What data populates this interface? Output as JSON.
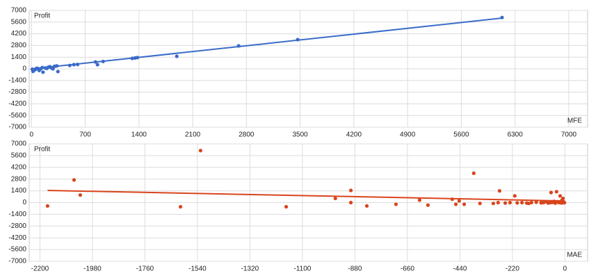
{
  "chart_data": [
    {
      "type": "scatter",
      "y_label": "Profit",
      "x_label": "MFE",
      "xlim": [
        -30,
        7245
      ],
      "xticks": [
        0,
        700,
        1400,
        2100,
        2800,
        3500,
        4200,
        4900,
        5600,
        6300,
        7000
      ],
      "ylim": [
        -7000,
        7000
      ],
      "yticks": [
        7000,
        5600,
        4200,
        2800,
        1400,
        0,
        -1400,
        -2800,
        -4200,
        -5600,
        -7000
      ],
      "grid": true,
      "series": [
        {
          "color": "#3a6bc9",
          "x": [
            6131,
            3468,
            2699,
            1893,
            1313,
            1349,
            1380,
            833,
            860,
            933,
            498,
            552,
            600,
            344,
            20,
            50,
            80,
            120,
            150,
            180,
            220,
            260,
            300,
            330,
            60,
            100,
            140,
            200,
            240,
            280,
            30,
            10
          ],
          "values": [
            6150,
            3500,
            2750,
            1500,
            1250,
            1300,
            1350,
            830,
            500,
            880,
            400,
            500,
            520,
            -330,
            -300,
            -100,
            50,
            0,
            -400,
            100,
            200,
            100,
            300,
            350,
            30,
            -200,
            150,
            50,
            250,
            0,
            -150,
            -50
          ]
        }
      ],
      "trend": {
        "color": "#3a6bc9",
        "x": [
          0,
          6131
        ],
        "values": [
          -20,
          6080
        ]
      }
    },
    {
      "type": "scatter",
      "y_label": "Profit",
      "x_label": "MAE",
      "xlim": [
        -2245,
        95
      ],
      "xticks": [
        -2200,
        -1980,
        -1760,
        -1540,
        -1320,
        -1100,
        -880,
        -660,
        -440,
        -220,
        0
      ],
      "ylim": [
        -7000,
        7000
      ],
      "yticks": [
        7000,
        5600,
        4200,
        2800,
        1400,
        0,
        -1400,
        -2800,
        -4200,
        -5600,
        -7000
      ],
      "grid": true,
      "series": [
        {
          "color": "#d9441c",
          "x": [
            -2168,
            -2057,
            -2031,
            -1527,
            -1611,
            -1168,
            -962,
            -897,
            -897,
            -830,
            -708,
            -609,
            -574,
            -472,
            -457,
            -443,
            -422,
            -382,
            -356,
            -274,
            -210,
            -152,
            -58,
            -35,
            -20,
            -300,
            -280,
            -250,
            -230,
            -200,
            -180,
            -160,
            -140,
            -120,
            -100,
            -90,
            -80,
            -70,
            -60,
            -50,
            -40,
            -30,
            -25,
            -15,
            -10,
            -5,
            -2,
            -12,
            -8,
            -45
          ],
          "values": [
            -400,
            2700,
            900,
            6200,
            -500,
            -500,
            500,
            1450,
            0,
            -400,
            -200,
            300,
            -300,
            400,
            -200,
            200,
            -200,
            3500,
            -100,
            1400,
            800,
            -100,
            1200,
            1300,
            800,
            -100,
            0,
            -50,
            0,
            -30,
            0,
            -50,
            0,
            50,
            -20,
            0,
            100,
            -50,
            0,
            30,
            -60,
            100,
            0,
            -40,
            0,
            50,
            -10,
            300,
            500,
            150
          ]
        }
      ],
      "trend": {
        "color": "#d9441c",
        "x": [
          -2168,
          0
        ],
        "values": [
          1450,
          200
        ]
      }
    }
  ]
}
